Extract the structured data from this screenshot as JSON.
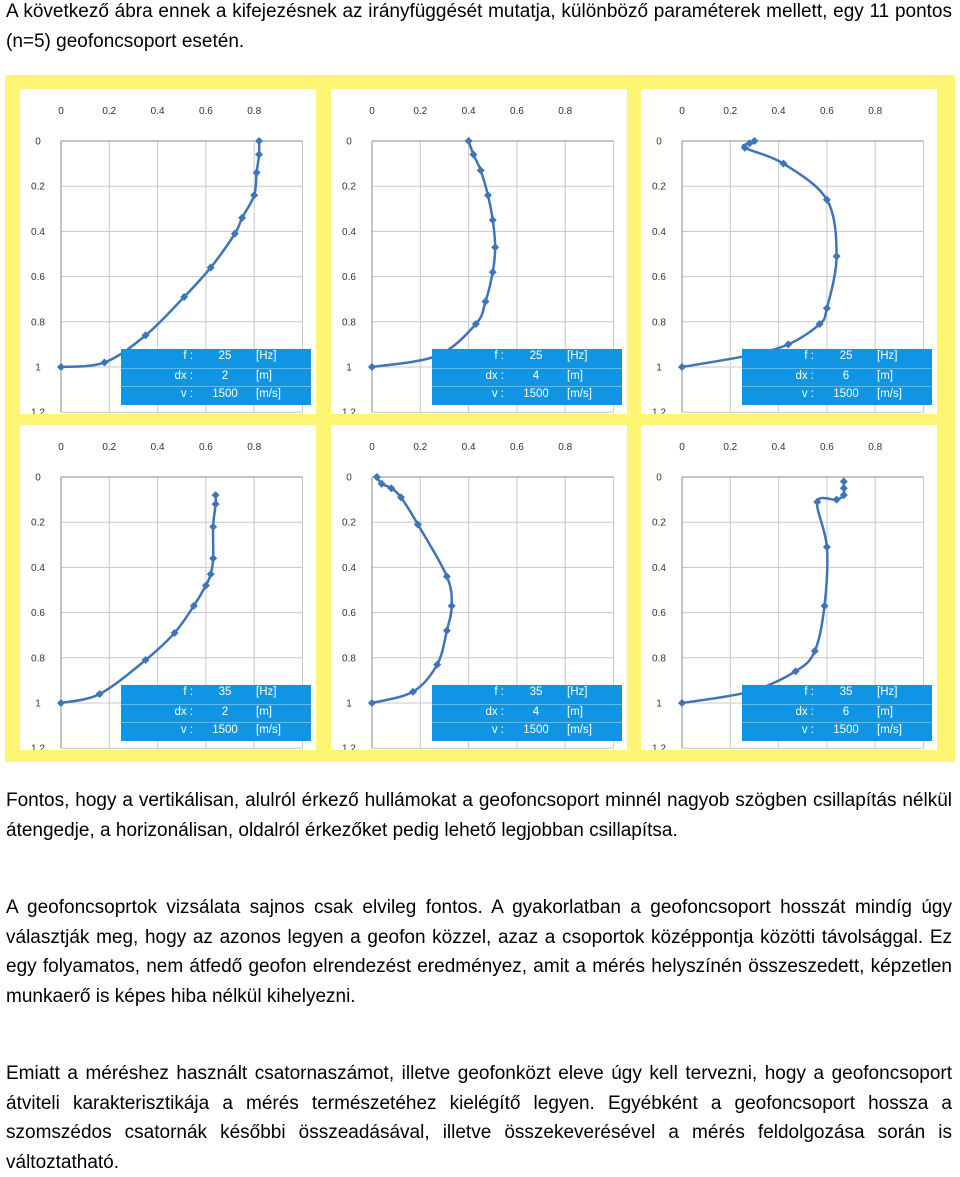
{
  "intro": "A következő ábra ennek a kifejezésnek az irányfüggését mutatja, különböző paraméterek mellett, egy 11 pontos (n=5) geofoncsoport esetén.",
  "paragraphs": [
    "Fontos, hogy a vertikálisan, alulról érkező hullámokat a geofoncsoport minnél nagyob szögben csillapítás nélkül átengedje, a horizonálisan, oldalról érkezőket pedig lehető legjobban csillapítsa.",
    "A geofoncsoprtok vizsálata sajnos csak elvileg fontos. A gyakorlatban a geofoncsoport hosszát mindíg úgy választják meg, hogy az azonos legyen a geofon közzel, azaz a csoportok középpontja közötti távolsággal. Ez egy folyamatos, nem átfedő geofon elrendezést eredményez, amit a mérés helyszínén összeszedett, képzetlen munkaerő is képes hiba nélkül kihelyezni.",
    "Emiatt a méréshez használt csatornaszámot, illetve geofonközt eleve úgy kell tervezni, hogy a geofoncsoport átviteli karakterisztikája a mérés természetéhez kielégítő legyen. Egyébként a geofoncsoport hossza a szomszédos csatornák későbbi összeadásával, illetve összekeverésével a mérés feldolgozása során is változtatható."
  ],
  "colors": {
    "figure_background": "#fef574",
    "series": "#3e74b8",
    "table_background": "#0f95e4",
    "grid": "#c8c8c8"
  },
  "chart_data": [
    {
      "type": "scatter",
      "xlim": [
        0,
        1
      ],
      "ylim": [
        1.2,
        0
      ],
      "y_reversed": true,
      "x_ticks": [
        "0",
        "0.2",
        "0.4",
        "0.6",
        "0.8"
      ],
      "y_ticks": [
        "0",
        "0.2",
        "0.4",
        "0.6",
        "0.8",
        "1",
        "1.2"
      ],
      "params": [
        {
          "label": "f :",
          "value": "25",
          "unit": "[Hz]"
        },
        {
          "label": "dx :",
          "value": "2",
          "unit": "[m]"
        },
        {
          "label": "v :",
          "value": "1500",
          "unit": "[m/s]"
        }
      ],
      "points": [
        [
          0.82,
          0
        ],
        [
          0.82,
          0.06
        ],
        [
          0.81,
          0.14
        ],
        [
          0.8,
          0.24
        ],
        [
          0.75,
          0.34
        ],
        [
          0.72,
          0.41
        ],
        [
          0.62,
          0.56
        ],
        [
          0.51,
          0.69
        ],
        [
          0.35,
          0.86
        ],
        [
          0.18,
          0.98
        ],
        [
          0,
          1
        ]
      ]
    },
    {
      "type": "scatter",
      "xlim": [
        0,
        1
      ],
      "ylim": [
        1.2,
        0
      ],
      "y_reversed": true,
      "x_ticks": [
        "0",
        "0.2",
        "0.4",
        "0.6",
        "0.8"
      ],
      "y_ticks": [
        "0",
        "0.2",
        "0.4",
        "0.6",
        "0.8",
        "1",
        "1.2"
      ],
      "params": [
        {
          "label": "f :",
          "value": "25",
          "unit": "[Hz]"
        },
        {
          "label": "dx :",
          "value": "4",
          "unit": "[m]"
        },
        {
          "label": "v :",
          "value": "1500",
          "unit": "[m/s]"
        }
      ],
      "points": [
        [
          0.4,
          0
        ],
        [
          0.42,
          0.06
        ],
        [
          0.45,
          0.13
        ],
        [
          0.48,
          0.24
        ],
        [
          0.5,
          0.35
        ],
        [
          0.51,
          0.47
        ],
        [
          0.5,
          0.58
        ],
        [
          0.47,
          0.71
        ],
        [
          0.43,
          0.81
        ],
        [
          0.27,
          0.95
        ],
        [
          0,
          1
        ]
      ]
    },
    {
      "type": "scatter",
      "xlim": [
        0,
        1
      ],
      "ylim": [
        1.2,
        0
      ],
      "y_reversed": true,
      "x_ticks": [
        "0",
        "0.2",
        "0.4",
        "0.6",
        "0.8"
      ],
      "y_ticks": [
        "0",
        "0.2",
        "0.4",
        "0.6",
        "0.8",
        "1",
        "1.2"
      ],
      "params": [
        {
          "label": "f :",
          "value": "25",
          "unit": "[Hz]"
        },
        {
          "label": "dx :",
          "value": "6",
          "unit": "[m]"
        },
        {
          "label": "v :",
          "value": "1500",
          "unit": "[m/s]"
        }
      ],
      "points": [
        [
          0.3,
          0
        ],
        [
          0.28,
          0.01
        ],
        [
          0.26,
          0.03
        ],
        [
          0.42,
          0.1
        ],
        [
          0.6,
          0.26
        ],
        [
          0.64,
          0.51
        ],
        [
          0.6,
          0.74
        ],
        [
          0.57,
          0.81
        ],
        [
          0.44,
          0.9
        ],
        [
          0.27,
          0.95
        ],
        [
          0,
          1
        ]
      ]
    },
    {
      "type": "scatter",
      "xlim": [
        0,
        1
      ],
      "ylim": [
        1.2,
        0
      ],
      "y_reversed": true,
      "x_ticks": [
        "0",
        "0.2",
        "0.4",
        "0.6",
        "0.8"
      ],
      "y_ticks": [
        "0",
        "0.2",
        "0.4",
        "0.6",
        "0.8",
        "1",
        "1.2"
      ],
      "params": [
        {
          "label": "f :",
          "value": "35",
          "unit": "[Hz]"
        },
        {
          "label": "dx :",
          "value": "2",
          "unit": "[m]"
        },
        {
          "label": "v :",
          "value": "1500",
          "unit": "[m/s]"
        }
      ],
      "points": [
        [
          0.64,
          0.08
        ],
        [
          0.64,
          0.12
        ],
        [
          0.63,
          0.22
        ],
        [
          0.63,
          0.36
        ],
        [
          0.62,
          0.43
        ],
        [
          0.6,
          0.48
        ],
        [
          0.55,
          0.57
        ],
        [
          0.47,
          0.69
        ],
        [
          0.35,
          0.81
        ],
        [
          0.16,
          0.96
        ],
        [
          0,
          1
        ]
      ]
    },
    {
      "type": "scatter",
      "xlim": [
        0,
        1
      ],
      "ylim": [
        1.2,
        0
      ],
      "y_reversed": true,
      "x_ticks": [
        "0",
        "0.2",
        "0.4",
        "0.6",
        "0.8"
      ],
      "y_ticks": [
        "0",
        "0.2",
        "0.4",
        "0.6",
        "0.8",
        "1",
        "1.2"
      ],
      "params": [
        {
          "label": "f :",
          "value": "35",
          "unit": "[Hz]"
        },
        {
          "label": "dx :",
          "value": "4",
          "unit": "[m]"
        },
        {
          "label": "v :",
          "value": "1500",
          "unit": "[m/s]"
        }
      ],
      "points": [
        [
          0.02,
          0
        ],
        [
          0.04,
          0.03
        ],
        [
          0.08,
          0.05
        ],
        [
          0.12,
          0.09
        ],
        [
          0.19,
          0.21
        ],
        [
          0.31,
          0.44
        ],
        [
          0.33,
          0.57
        ],
        [
          0.31,
          0.68
        ],
        [
          0.27,
          0.83
        ],
        [
          0.17,
          0.95
        ],
        [
          0,
          1
        ]
      ]
    },
    {
      "type": "scatter",
      "xlim": [
        0,
        1
      ],
      "ylim": [
        1.2,
        0
      ],
      "y_reversed": true,
      "x_ticks": [
        "0",
        "0.2",
        "0.4",
        "0.6",
        "0.8"
      ],
      "y_ticks": [
        "0",
        "0.2",
        "0.4",
        "0.6",
        "0.8",
        "1",
        "1.2"
      ],
      "params": [
        {
          "label": "f :",
          "value": "35",
          "unit": "[Hz]"
        },
        {
          "label": "dx :",
          "value": "6",
          "unit": "[m]"
        },
        {
          "label": "v :",
          "value": "1500",
          "unit": "[m/s]"
        }
      ],
      "points": [
        [
          0.67,
          0.02
        ],
        [
          0.67,
          0.05
        ],
        [
          0.67,
          0.08
        ],
        [
          0.64,
          0.1
        ],
        [
          0.56,
          0.11
        ],
        [
          0.6,
          0.31
        ],
        [
          0.59,
          0.57
        ],
        [
          0.55,
          0.77
        ],
        [
          0.47,
          0.86
        ],
        [
          0.28,
          0.95
        ],
        [
          0,
          1
        ]
      ]
    }
  ]
}
